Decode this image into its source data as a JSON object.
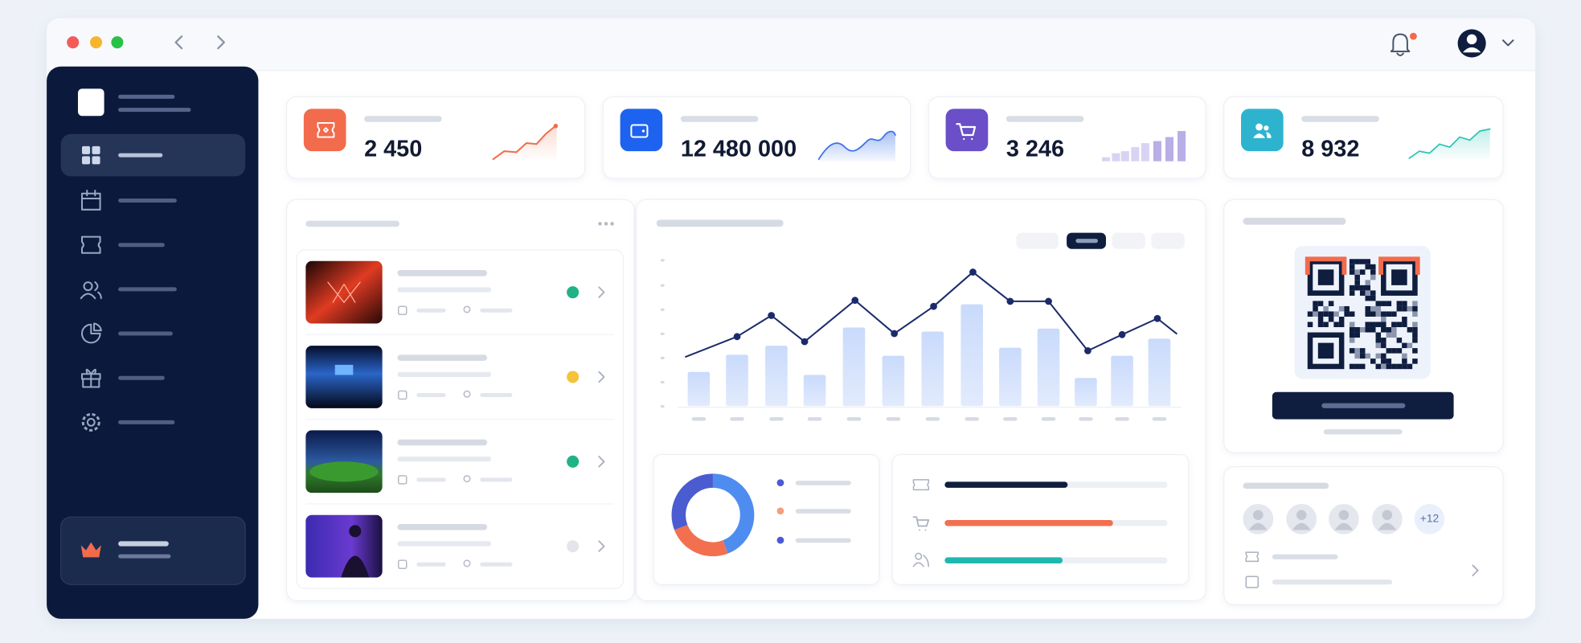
{
  "stats": [
    {
      "value": "2 450"
    },
    {
      "value": "12 480 000"
    },
    {
      "value": "3 246"
    },
    {
      "value": "8 932"
    }
  ],
  "attendees": {
    "more": "+12"
  }
}
